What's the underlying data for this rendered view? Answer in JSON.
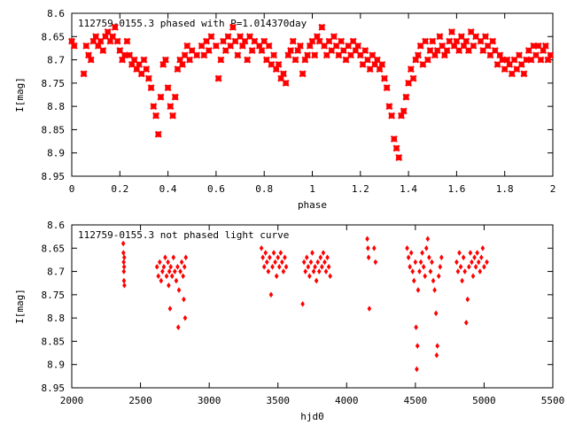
{
  "colors": {
    "points": "#ff0000",
    "axes": "#000000",
    "background": "#ffffff"
  },
  "chart_data": [
    {
      "type": "scatter",
      "title": "112759-0155.3 phased with P=1.014370day",
      "xlabel": "phase",
      "ylabel": "I[mag]",
      "xlim": [
        0,
        2
      ],
      "ylim": [
        8.6,
        8.95
      ],
      "y_inverted": true,
      "xticks": [
        0,
        0.2,
        0.4,
        0.6,
        0.8,
        1,
        1.2,
        1.4,
        1.6,
        1.8,
        2
      ],
      "xtick_labels": [
        "0",
        "0.2",
        "0.4",
        "0.6",
        "0.8",
        "1",
        "1.2",
        "1.4",
        "1.6",
        "1.8",
        "2"
      ],
      "yticks": [
        8.6,
        8.65,
        8.7,
        8.75,
        8.8,
        8.85,
        8.9,
        8.95
      ],
      "ytick_labels": [
        "8.6",
        "8.65",
        "8.7",
        "8.75",
        "8.8",
        "8.85",
        "8.9",
        "8.95"
      ],
      "marker": "cross",
      "points": [
        [
          0.0,
          8.66
        ],
        [
          0.01,
          8.67
        ],
        [
          0.05,
          8.73
        ],
        [
          0.06,
          8.67
        ],
        [
          0.07,
          8.69
        ],
        [
          0.08,
          8.7
        ],
        [
          0.09,
          8.66
        ],
        [
          0.1,
          8.65
        ],
        [
          0.11,
          8.67
        ],
        [
          0.12,
          8.66
        ],
        [
          0.13,
          8.68
        ],
        [
          0.14,
          8.65
        ],
        [
          0.15,
          8.64
        ],
        [
          0.16,
          8.66
        ],
        [
          0.17,
          8.65
        ],
        [
          0.18,
          8.63
        ],
        [
          0.19,
          8.66
        ],
        [
          0.2,
          8.68
        ],
        [
          0.21,
          8.7
        ],
        [
          0.22,
          8.69
        ],
        [
          0.23,
          8.66
        ],
        [
          0.24,
          8.69
        ],
        [
          0.25,
          8.71
        ],
        [
          0.26,
          8.7
        ],
        [
          0.27,
          8.72
        ],
        [
          0.28,
          8.71
        ],
        [
          0.29,
          8.73
        ],
        [
          0.3,
          8.7
        ],
        [
          0.31,
          8.72
        ],
        [
          0.32,
          8.74
        ],
        [
          0.33,
          8.76
        ],
        [
          0.34,
          8.8
        ],
        [
          0.35,
          8.82
        ],
        [
          0.36,
          8.86
        ],
        [
          0.37,
          8.78
        ],
        [
          0.38,
          8.71
        ],
        [
          0.39,
          8.7
        ],
        [
          0.4,
          8.76
        ],
        [
          0.41,
          8.8
        ],
        [
          0.42,
          8.82
        ],
        [
          0.43,
          8.78
        ],
        [
          0.44,
          8.72
        ],
        [
          0.45,
          8.7
        ],
        [
          0.46,
          8.71
        ],
        [
          0.47,
          8.69
        ],
        [
          0.48,
          8.67
        ],
        [
          0.49,
          8.7
        ],
        [
          0.5,
          8.68
        ],
        [
          0.52,
          8.69
        ],
        [
          0.54,
          8.67
        ],
        [
          0.55,
          8.69
        ],
        [
          0.56,
          8.66
        ],
        [
          0.57,
          8.68
        ],
        [
          0.58,
          8.65
        ],
        [
          0.6,
          8.67
        ],
        [
          0.61,
          8.74
        ],
        [
          0.62,
          8.7
        ],
        [
          0.63,
          8.66
        ],
        [
          0.64,
          8.68
        ],
        [
          0.65,
          8.65
        ],
        [
          0.66,
          8.67
        ],
        [
          0.67,
          8.63
        ],
        [
          0.68,
          8.66
        ],
        [
          0.69,
          8.69
        ],
        [
          0.7,
          8.65
        ],
        [
          0.71,
          8.67
        ],
        [
          0.72,
          8.66
        ],
        [
          0.73,
          8.7
        ],
        [
          0.74,
          8.65
        ],
        [
          0.75,
          8.68
        ],
        [
          0.76,
          8.66
        ],
        [
          0.78,
          8.67
        ],
        [
          0.79,
          8.68
        ],
        [
          0.8,
          8.66
        ],
        [
          0.81,
          8.7
        ],
        [
          0.82,
          8.67
        ],
        [
          0.83,
          8.71
        ],
        [
          0.84,
          8.69
        ],
        [
          0.85,
          8.72
        ],
        [
          0.86,
          8.71
        ],
        [
          0.87,
          8.74
        ],
        [
          0.88,
          8.73
        ],
        [
          0.89,
          8.75
        ],
        [
          0.9,
          8.69
        ],
        [
          0.91,
          8.68
        ],
        [
          0.92,
          8.66
        ],
        [
          0.93,
          8.7
        ],
        [
          0.94,
          8.68
        ],
        [
          0.95,
          8.67
        ],
        [
          0.96,
          8.73
        ],
        [
          0.97,
          8.7
        ],
        [
          0.98,
          8.69
        ],
        [
          0.99,
          8.67
        ],
        [
          1.0,
          8.66
        ],
        [
          1.01,
          8.69
        ],
        [
          1.02,
          8.65
        ],
        [
          1.03,
          8.66
        ],
        [
          1.04,
          8.63
        ],
        [
          1.05,
          8.67
        ],
        [
          1.06,
          8.69
        ],
        [
          1.07,
          8.66
        ],
        [
          1.08,
          8.68
        ],
        [
          1.09,
          8.65
        ],
        [
          1.1,
          8.67
        ],
        [
          1.11,
          8.69
        ],
        [
          1.12,
          8.66
        ],
        [
          1.13,
          8.68
        ],
        [
          1.14,
          8.7
        ],
        [
          1.15,
          8.67
        ],
        [
          1.16,
          8.69
        ],
        [
          1.17,
          8.66
        ],
        [
          1.18,
          8.68
        ],
        [
          1.19,
          8.67
        ],
        [
          1.2,
          8.69
        ],
        [
          1.21,
          8.71
        ],
        [
          1.22,
          8.68
        ],
        [
          1.23,
          8.7
        ],
        [
          1.24,
          8.72
        ],
        [
          1.25,
          8.69
        ],
        [
          1.26,
          8.71
        ],
        [
          1.27,
          8.7
        ],
        [
          1.28,
          8.72
        ],
        [
          1.29,
          8.71
        ],
        [
          1.3,
          8.74
        ],
        [
          1.31,
          8.76
        ],
        [
          1.32,
          8.8
        ],
        [
          1.33,
          8.82
        ],
        [
          1.34,
          8.87
        ],
        [
          1.35,
          8.89
        ],
        [
          1.36,
          8.91
        ],
        [
          1.37,
          8.82
        ],
        [
          1.38,
          8.81
        ],
        [
          1.39,
          8.78
        ],
        [
          1.4,
          8.75
        ],
        [
          1.41,
          8.72
        ],
        [
          1.42,
          8.74
        ],
        [
          1.43,
          8.7
        ],
        [
          1.44,
          8.69
        ],
        [
          1.45,
          8.67
        ],
        [
          1.46,
          8.71
        ],
        [
          1.47,
          8.66
        ],
        [
          1.48,
          8.7
        ],
        [
          1.49,
          8.68
        ],
        [
          1.5,
          8.66
        ],
        [
          1.51,
          8.69
        ],
        [
          1.52,
          8.68
        ],
        [
          1.53,
          8.65
        ],
        [
          1.54,
          8.67
        ],
        [
          1.55,
          8.69
        ],
        [
          1.56,
          8.68
        ],
        [
          1.57,
          8.66
        ],
        [
          1.58,
          8.64
        ],
        [
          1.59,
          8.67
        ],
        [
          1.6,
          8.66
        ],
        [
          1.61,
          8.68
        ],
        [
          1.62,
          8.65
        ],
        [
          1.63,
          8.67
        ],
        [
          1.64,
          8.66
        ],
        [
          1.65,
          8.68
        ],
        [
          1.66,
          8.64
        ],
        [
          1.67,
          8.67
        ],
        [
          1.68,
          8.65
        ],
        [
          1.7,
          8.66
        ],
        [
          1.71,
          8.68
        ],
        [
          1.72,
          8.65
        ],
        [
          1.73,
          8.67
        ],
        [
          1.74,
          8.69
        ],
        [
          1.75,
          8.66
        ],
        [
          1.76,
          8.68
        ],
        [
          1.77,
          8.71
        ],
        [
          1.78,
          8.69
        ],
        [
          1.79,
          8.7
        ],
        [
          1.8,
          8.72
        ],
        [
          1.81,
          8.7
        ],
        [
          1.82,
          8.71
        ],
        [
          1.83,
          8.73
        ],
        [
          1.84,
          8.7
        ],
        [
          1.85,
          8.72
        ],
        [
          1.86,
          8.69
        ],
        [
          1.87,
          8.71
        ],
        [
          1.88,
          8.73
        ],
        [
          1.89,
          8.7
        ],
        [
          1.9,
          8.68
        ],
        [
          1.91,
          8.7
        ],
        [
          1.92,
          8.67
        ],
        [
          1.93,
          8.69
        ],
        [
          1.94,
          8.67
        ],
        [
          1.95,
          8.7
        ],
        [
          1.96,
          8.68
        ],
        [
          1.97,
          8.67
        ],
        [
          1.98,
          8.7
        ],
        [
          1.99,
          8.69
        ]
      ]
    },
    {
      "type": "scatter",
      "title": "112759-0155.3 not phased light curve",
      "xlabel": "hjd0",
      "ylabel": "I[mag]",
      "xlim": [
        2000,
        5500
      ],
      "ylim": [
        8.6,
        8.95
      ],
      "y_inverted": true,
      "xticks": [
        2000,
        2500,
        3000,
        3500,
        4000,
        4500,
        5000,
        5500
      ],
      "xtick_labels": [
        "2000",
        "2500",
        "3000",
        "3500",
        "4000",
        "4500",
        "5000",
        "5500"
      ],
      "yticks": [
        8.6,
        8.65,
        8.7,
        8.75,
        8.8,
        8.85,
        8.9,
        8.95
      ],
      "ytick_labels": [
        "8.6",
        "8.65",
        "8.7",
        "8.75",
        "8.8",
        "8.85",
        "8.9",
        "8.95"
      ],
      "marker": "diamond",
      "points": [
        [
          2375,
          8.64
        ],
        [
          2376,
          8.66
        ],
        [
          2378,
          8.68
        ],
        [
          2379,
          8.7
        ],
        [
          2380,
          8.72
        ],
        [
          2381,
          8.69
        ],
        [
          2382,
          8.67
        ],
        [
          2383,
          8.73
        ],
        [
          2620,
          8.69
        ],
        [
          2630,
          8.71
        ],
        [
          2640,
          8.68
        ],
        [
          2650,
          8.72
        ],
        [
          2660,
          8.7
        ],
        [
          2670,
          8.69
        ],
        [
          2680,
          8.67
        ],
        [
          2690,
          8.71
        ],
        [
          2700,
          8.68
        ],
        [
          2705,
          8.73
        ],
        [
          2710,
          8.7
        ],
        [
          2715,
          8.78
        ],
        [
          2720,
          8.69
        ],
        [
          2730,
          8.71
        ],
        [
          2740,
          8.67
        ],
        [
          2750,
          8.7
        ],
        [
          2760,
          8.72
        ],
        [
          2770,
          8.69
        ],
        [
          2775,
          8.82
        ],
        [
          2780,
          8.74
        ],
        [
          2790,
          8.7
        ],
        [
          2800,
          8.68
        ],
        [
          2810,
          8.71
        ],
        [
          2815,
          8.76
        ],
        [
          2820,
          8.69
        ],
        [
          2825,
          8.8
        ],
        [
          2830,
          8.67
        ],
        [
          3380,
          8.65
        ],
        [
          3390,
          8.67
        ],
        [
          3400,
          8.69
        ],
        [
          3410,
          8.66
        ],
        [
          3420,
          8.68
        ],
        [
          3430,
          8.7
        ],
        [
          3440,
          8.67
        ],
        [
          3450,
          8.75
        ],
        [
          3460,
          8.69
        ],
        [
          3470,
          8.66
        ],
        [
          3480,
          8.68
        ],
        [
          3490,
          8.71
        ],
        [
          3500,
          8.67
        ],
        [
          3510,
          8.69
        ],
        [
          3520,
          8.66
        ],
        [
          3530,
          8.68
        ],
        [
          3540,
          8.7
        ],
        [
          3550,
          8.67
        ],
        [
          3560,
          8.69
        ],
        [
          3680,
          8.77
        ],
        [
          3690,
          8.68
        ],
        [
          3700,
          8.7
        ],
        [
          3710,
          8.67
        ],
        [
          3720,
          8.69
        ],
        [
          3730,
          8.71
        ],
        [
          3740,
          8.68
        ],
        [
          3750,
          8.66
        ],
        [
          3760,
          8.7
        ],
        [
          3770,
          8.69
        ],
        [
          3780,
          8.72
        ],
        [
          3790,
          8.68
        ],
        [
          3800,
          8.7
        ],
        [
          3810,
          8.67
        ],
        [
          3820,
          8.69
        ],
        [
          3830,
          8.66
        ],
        [
          3840,
          8.68
        ],
        [
          3850,
          8.7
        ],
        [
          3860,
          8.67
        ],
        [
          3870,
          8.69
        ],
        [
          3880,
          8.71
        ],
        [
          4150,
          8.63
        ],
        [
          4155,
          8.65
        ],
        [
          4160,
          8.67
        ],
        [
          4165,
          8.78
        ],
        [
          4200,
          8.65
        ],
        [
          4210,
          8.68
        ],
        [
          4440,
          8.65
        ],
        [
          4450,
          8.67
        ],
        [
          4460,
          8.69
        ],
        [
          4470,
          8.66
        ],
        [
          4480,
          8.7
        ],
        [
          4490,
          8.72
        ],
        [
          4500,
          8.68
        ],
        [
          4505,
          8.82
        ],
        [
          4510,
          8.91
        ],
        [
          4515,
          8.86
        ],
        [
          4520,
          8.74
        ],
        [
          4530,
          8.7
        ],
        [
          4540,
          8.68
        ],
        [
          4550,
          8.66
        ],
        [
          4560,
          8.69
        ],
        [
          4570,
          8.71
        ],
        [
          4580,
          8.65
        ],
        [
          4590,
          8.63
        ],
        [
          4600,
          8.67
        ],
        [
          4610,
          8.7
        ],
        [
          4620,
          8.68
        ],
        [
          4630,
          8.72
        ],
        [
          4640,
          8.74
        ],
        [
          4650,
          8.79
        ],
        [
          4655,
          8.88
        ],
        [
          4660,
          8.86
        ],
        [
          4670,
          8.71
        ],
        [
          4680,
          8.69
        ],
        [
          4690,
          8.67
        ],
        [
          4800,
          8.68
        ],
        [
          4810,
          8.7
        ],
        [
          4820,
          8.66
        ],
        [
          4830,
          8.69
        ],
        [
          4840,
          8.72
        ],
        [
          4850,
          8.67
        ],
        [
          4860,
          8.7
        ],
        [
          4870,
          8.81
        ],
        [
          4880,
          8.76
        ],
        [
          4890,
          8.69
        ],
        [
          4900,
          8.66
        ],
        [
          4910,
          8.68
        ],
        [
          4920,
          8.71
        ],
        [
          4930,
          8.67
        ],
        [
          4940,
          8.69
        ],
        [
          4950,
          8.66
        ],
        [
          4960,
          8.68
        ],
        [
          4970,
          8.7
        ],
        [
          4980,
          8.67
        ],
        [
          4990,
          8.65
        ],
        [
          5000,
          8.69
        ],
        [
          5020,
          8.68
        ]
      ]
    }
  ]
}
